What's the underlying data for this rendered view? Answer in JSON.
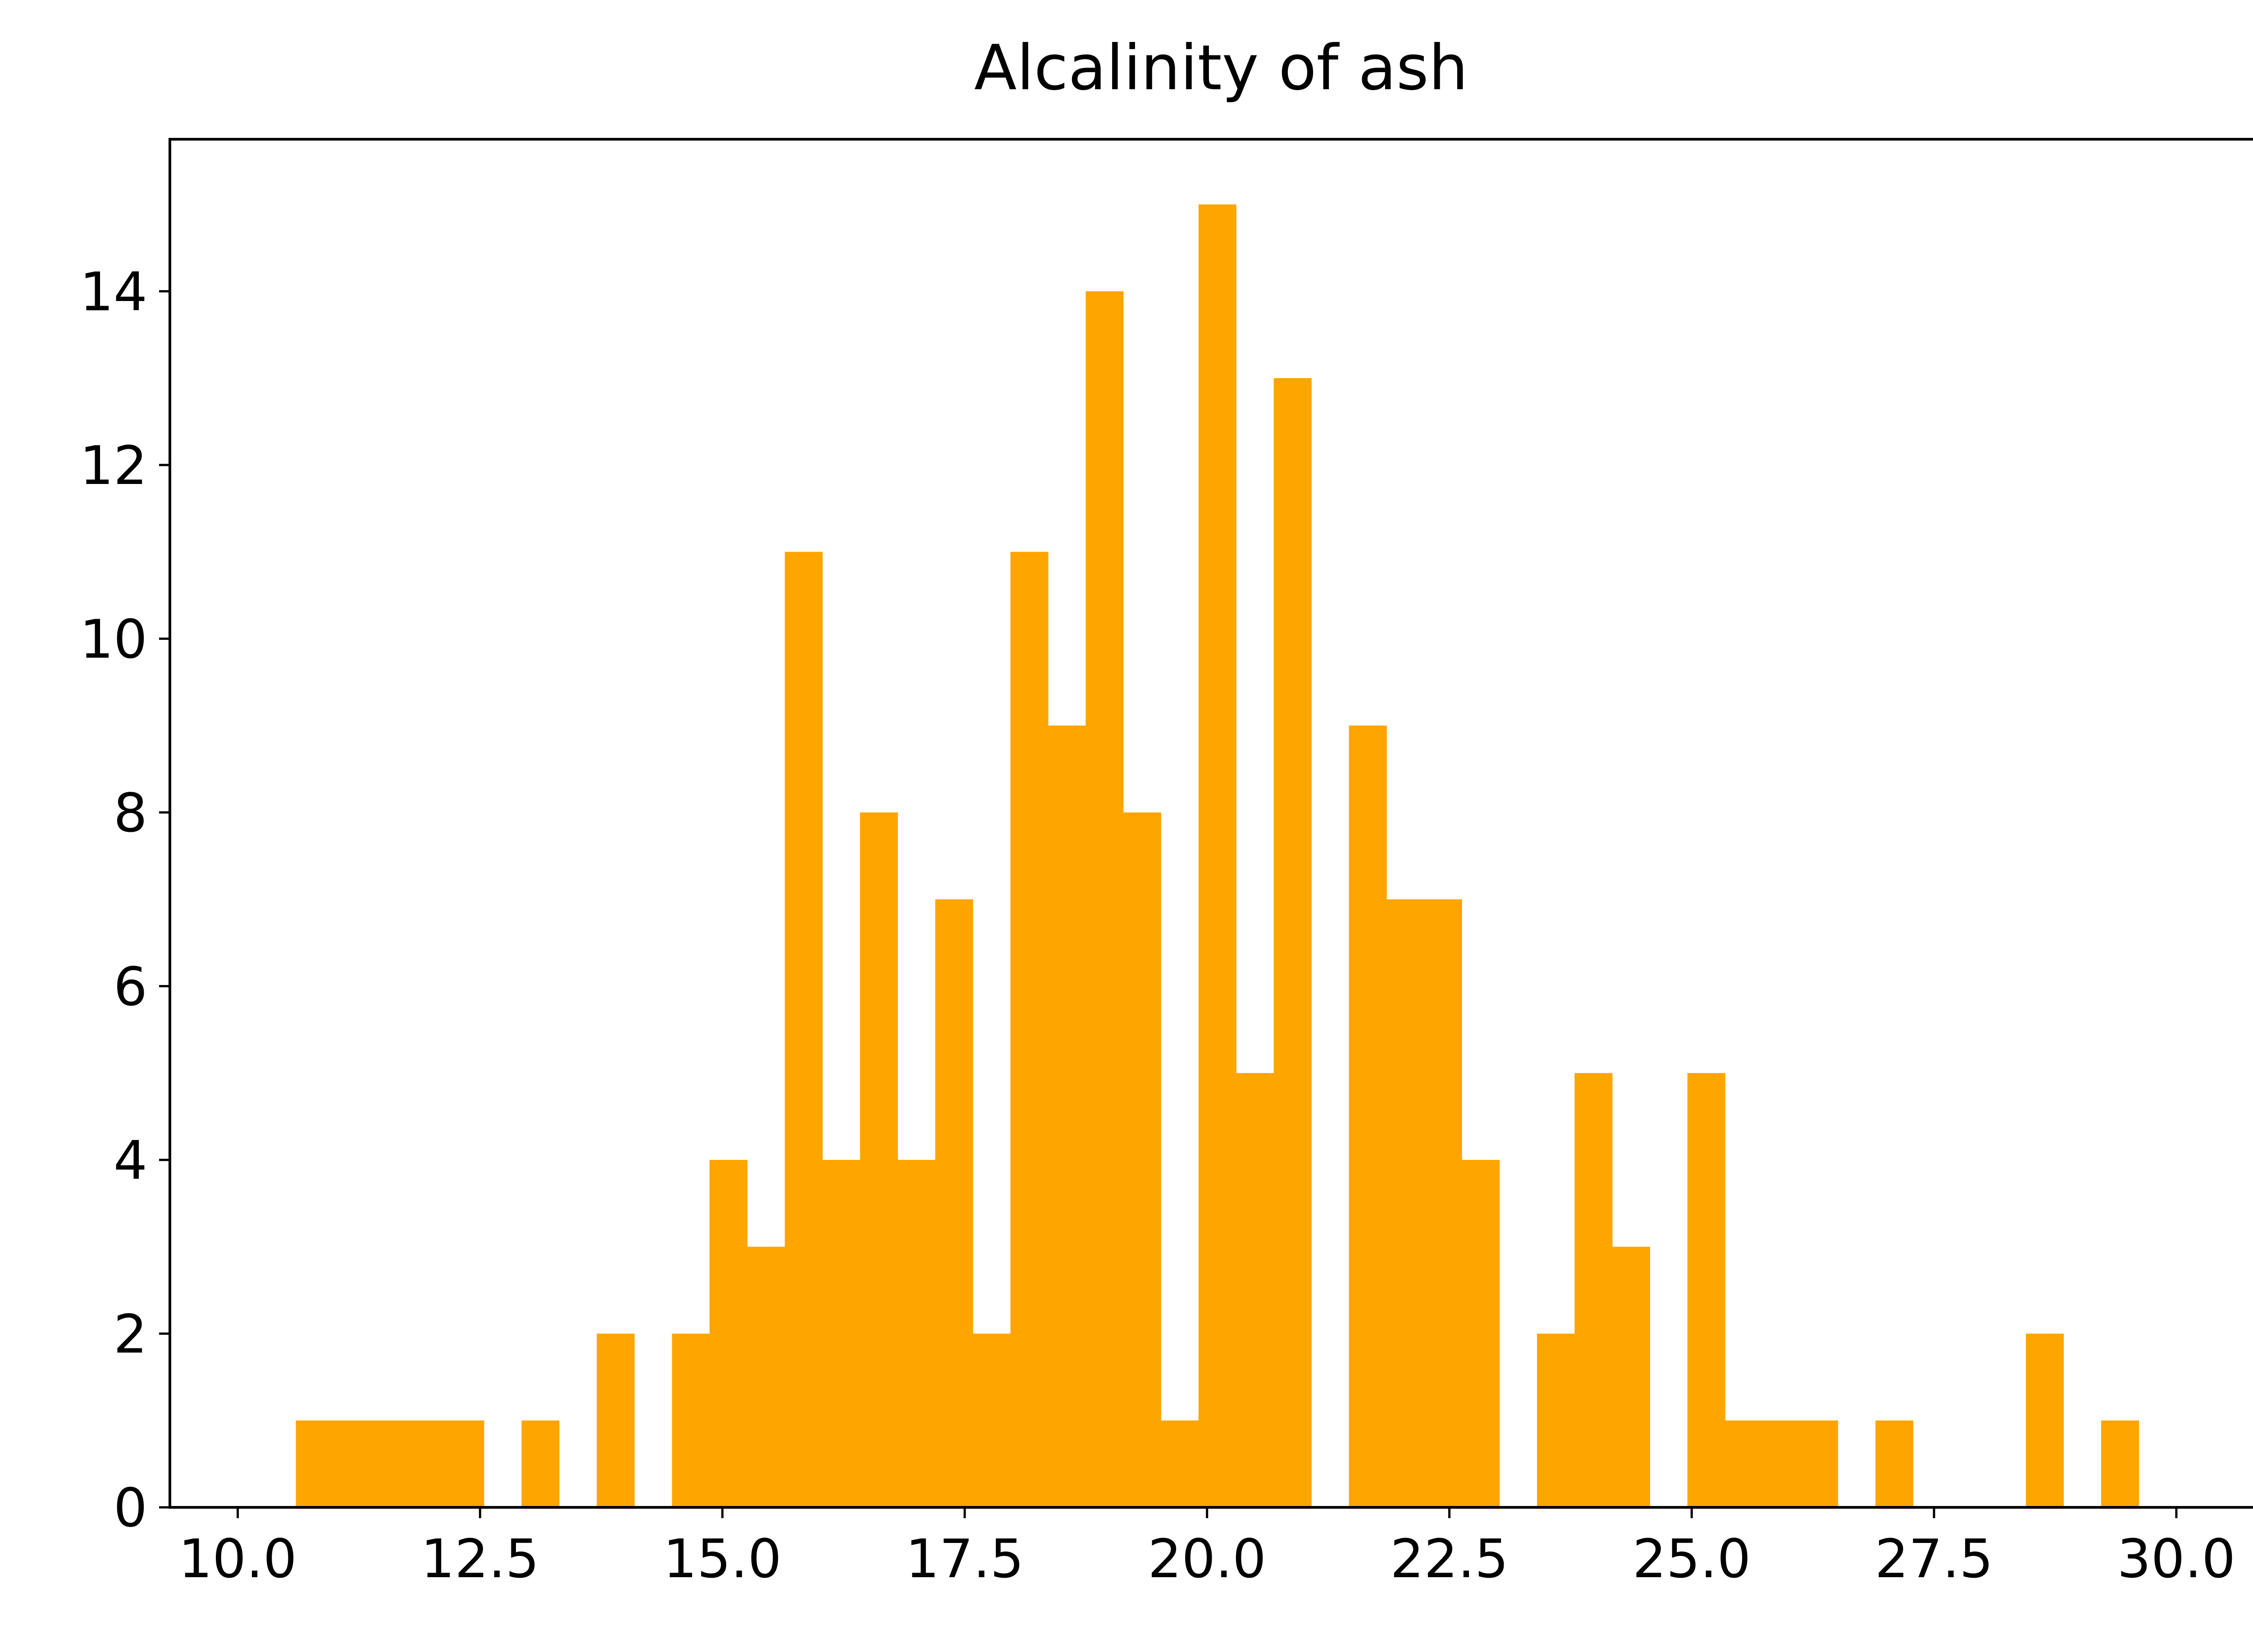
{
  "chart_data": {
    "type": "bar",
    "title": "Alcalinity of ash",
    "xlabel": "",
    "ylabel": "",
    "xlim": [
      9.3,
      31.0
    ],
    "ylim": [
      0,
      15.75
    ],
    "grid": false,
    "bar_color": "#FFA500",
    "x_ticks": [
      {
        "value": 10.0,
        "label": "10.0"
      },
      {
        "value": 12.5,
        "label": "12.5"
      },
      {
        "value": 15.0,
        "label": "15.0"
      },
      {
        "value": 17.5,
        "label": "17.5"
      },
      {
        "value": 20.0,
        "label": "20.0"
      },
      {
        "value": 22.5,
        "label": "22.5"
      },
      {
        "value": 25.0,
        "label": "25.0"
      },
      {
        "value": 27.5,
        "label": "27.5"
      },
      {
        "value": 30.0,
        "label": "30.0"
      }
    ],
    "y_ticks": [
      {
        "value": 0,
        "label": "0"
      },
      {
        "value": 2,
        "label": "2"
      },
      {
        "value": 4,
        "label": "4"
      },
      {
        "value": 6,
        "label": "6"
      },
      {
        "value": 8,
        "label": "8"
      },
      {
        "value": 10,
        "label": "10"
      },
      {
        "value": 12,
        "label": "12"
      },
      {
        "value": 14,
        "label": "14"
      }
    ],
    "bin_edges": [
      10.6,
      10.988,
      11.376,
      11.764,
      12.152,
      12.54,
      12.928,
      13.316,
      13.704,
      14.092,
      14.48,
      14.868,
      15.256,
      15.644,
      16.032,
      16.42,
      16.808,
      17.196,
      17.584,
      17.972,
      18.36,
      18.748,
      19.136,
      19.524,
      19.912,
      20.3,
      20.688,
      21.076,
      21.464,
      21.852,
      22.24,
      22.628,
      23.016,
      23.404,
      23.792,
      24.18,
      24.568,
      24.956,
      25.344,
      25.732,
      26.12,
      26.508,
      26.896,
      27.284,
      27.672,
      28.06,
      28.448,
      28.836,
      29.224,
      29.612,
      30.0
    ],
    "counts": [
      1,
      1,
      1,
      1,
      1,
      0,
      1,
      0,
      2,
      0,
      2,
      4,
      3,
      11,
      4,
      8,
      4,
      7,
      2,
      11,
      9,
      14,
      8,
      1,
      15,
      5,
      13,
      0,
      9,
      7,
      7,
      4,
      0,
      2,
      5,
      3,
      0,
      5,
      1,
      1,
      1,
      0,
      1,
      0,
      0,
      0,
      2,
      0,
      1,
      0
    ]
  }
}
